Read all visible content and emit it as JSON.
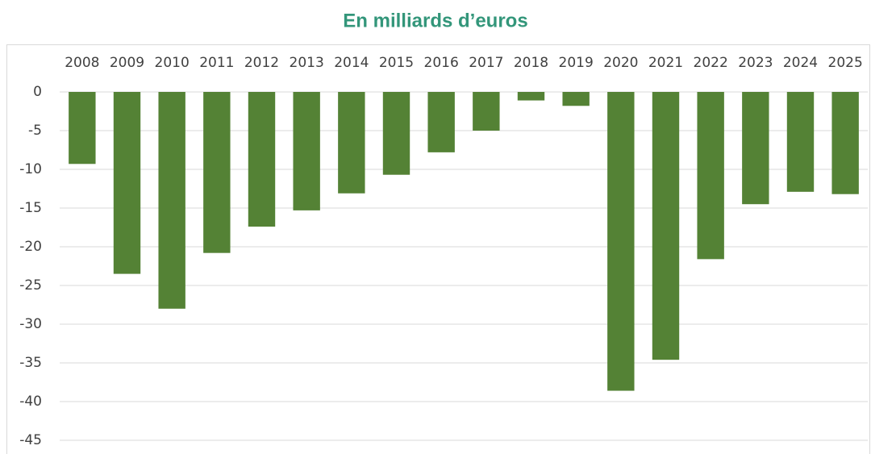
{
  "chart_data": {
    "type": "bar",
    "title": "En milliards d’euros",
    "categories": [
      "2008",
      "2009",
      "2010",
      "2011",
      "2012",
      "2013",
      "2014",
      "2015",
      "2016",
      "2017",
      "2018",
      "2019",
      "2020",
      "2021",
      "2022",
      "2023",
      "2024",
      "2025"
    ],
    "values": [
      -9.3,
      -23.5,
      -28.0,
      -20.8,
      -17.4,
      -15.3,
      -13.1,
      -10.7,
      -7.8,
      -5.0,
      -1.1,
      -1.8,
      -38.6,
      -34.6,
      -21.6,
      -14.5,
      -12.9,
      -13.2
    ],
    "color": "#548235",
    "ylim": [
      -45,
      0
    ],
    "yticks": [
      0,
      -5,
      -10,
      -15,
      -20,
      -25,
      -30,
      -35,
      -40,
      -45
    ],
    "grid": true
  }
}
